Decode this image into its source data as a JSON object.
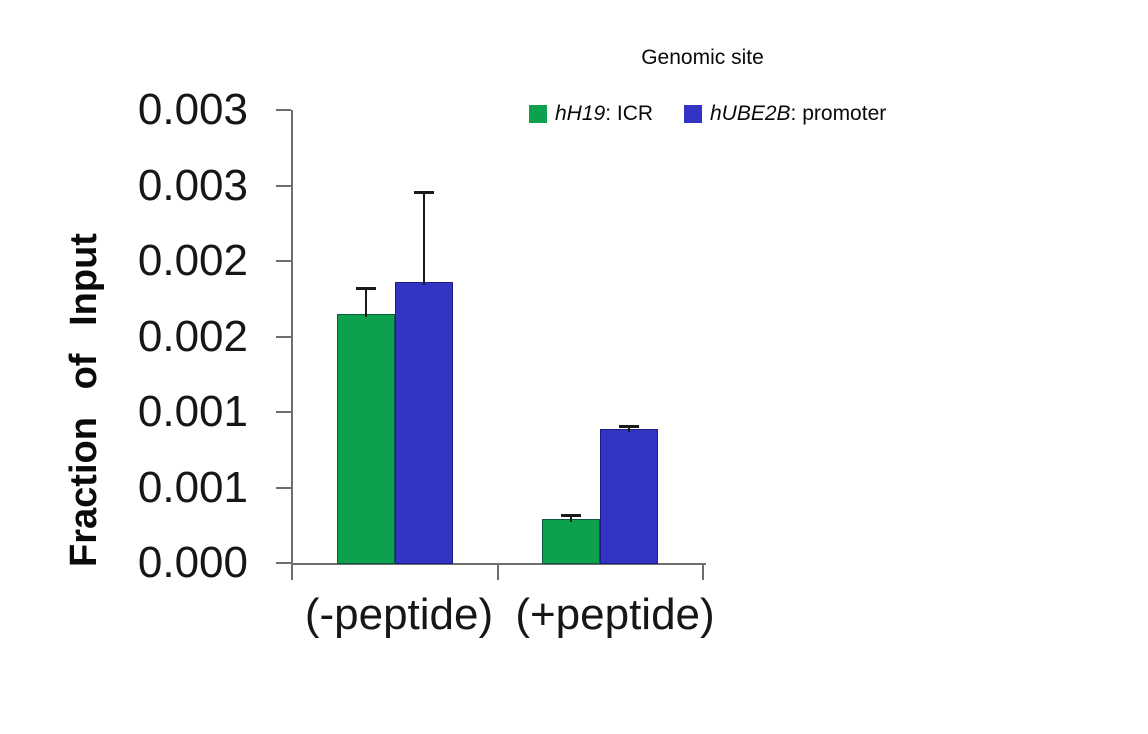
{
  "chart_data": {
    "type": "bar",
    "title": "Genomic site",
    "ylabel": "Fraction of Input",
    "xlabel": "",
    "categories": [
      "(-peptide)",
      "(+peptide)"
    ],
    "series": [
      {
        "name": "hH19: ICR",
        "color": "#0EA14D",
        "values": [
          0.00165,
          0.00029
        ],
        "errors_plus": [
          0.00017,
          3e-05
        ]
      },
      {
        "name": "hUBE2B: promoter",
        "color": "#3434C4",
        "values": [
          0.00186,
          0.00089
        ],
        "errors_plus": [
          0.0006,
          2e-05
        ]
      }
    ],
    "ylim": [
      0,
      0.003
    ],
    "yticks": [
      {
        "value": 0.0,
        "label": "0.000"
      },
      {
        "value": 0.0005,
        "label": "0.001"
      },
      {
        "value": 0.001,
        "label": "0.001"
      },
      {
        "value": 0.0015,
        "label": "0.002"
      },
      {
        "value": 0.002,
        "label": "0.002"
      },
      {
        "value": 0.0025,
        "label": "0.003"
      },
      {
        "value": 0.003,
        "label": "0.003"
      }
    ],
    "grid": false,
    "legend_position": "top-right",
    "axis_color": "#6e6e6e",
    "error_bar_color": "#1a1a1a",
    "tick_label_color": "#161616"
  },
  "legend": {
    "title": "Genomic site",
    "items": [
      {
        "gene": "hH19",
        "label_suffix": ": ICR",
        "color": "#0EA14D"
      },
      {
        "gene": "hUBE2B",
        "label_suffix": ": promoter",
        "color": "#3434C4"
      }
    ]
  }
}
